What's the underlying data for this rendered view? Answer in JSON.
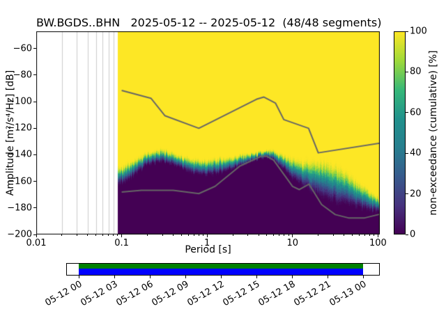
{
  "title": "BW.BGDS..BHN   2025-05-12 -- 2025-05-12  (48/48 segments)",
  "axes": {
    "xlabel": "Period [s]",
    "ylabel": "Amplitude [m²/s⁴/Hz] [dB]"
  },
  "colorbar": {
    "label": "non-exceedance (cumulative) [%]",
    "ticks": [
      0,
      20,
      40,
      60,
      80,
      100
    ],
    "colormap_stops": [
      {
        "t": 0.0,
        "c": "#440154"
      },
      {
        "t": 0.14,
        "c": "#46327e"
      },
      {
        "t": 0.29,
        "c": "#365c8d"
      },
      {
        "t": 0.43,
        "c": "#277f8e"
      },
      {
        "t": 0.57,
        "c": "#21918c"
      },
      {
        "t": 0.71,
        "c": "#35b779"
      },
      {
        "t": 0.86,
        "c": "#a0da39"
      },
      {
        "t": 1.0,
        "c": "#fde725"
      }
    ]
  },
  "chart_data": {
    "type": "heatmap",
    "mode": "non-exceedance (cumulative) [%]",
    "station": "BW.BGDS..BHN",
    "date_range": "2025-05-12 -- 2025-05-12",
    "segments": "48/48",
    "xscale": "log",
    "xlim": [
      0.01,
      105
    ],
    "ylim": [
      -200,
      -47
    ],
    "min_period": 0.09,
    "x_ticks": [
      {
        "v": 0.01,
        "label": "0.01"
      },
      {
        "v": 0.1,
        "label": "0.1"
      },
      {
        "v": 1,
        "label": "1"
      },
      {
        "v": 10,
        "label": "10"
      },
      {
        "v": 100,
        "label": "100"
      }
    ],
    "y_ticks": [
      {
        "v": -60,
        "label": "−60"
      },
      {
        "v": -80,
        "label": "−80"
      },
      {
        "v": -100,
        "label": "−100"
      },
      {
        "v": -120,
        "label": "−120"
      },
      {
        "v": -140,
        "label": "−140"
      },
      {
        "v": -160,
        "label": "−160"
      },
      {
        "v": -180,
        "label": "−180"
      },
      {
        "v": -200,
        "label": "−200"
      }
    ],
    "distribution": {
      "periods": [
        0.09,
        0.12,
        0.15,
        0.2,
        0.3,
        0.4,
        0.5,
        0.7,
        1.0,
        1.5,
        2,
        3,
        4,
        5,
        6,
        8,
        10,
        13,
        16,
        20,
        25,
        30,
        40,
        50,
        65,
        80,
        100,
        105
      ],
      "median_db": [
        -157,
        -153,
        -149,
        -143,
        -141,
        -143,
        -146,
        -149,
        -150,
        -148,
        -146,
        -143,
        -141,
        -140,
        -141,
        -146,
        -151,
        -154,
        -156,
        -158,
        -160,
        -162,
        -165,
        -168,
        -172,
        -175,
        -178,
        -178
      ],
      "halfwidth_db": [
        7,
        7,
        6,
        5,
        5,
        5,
        5,
        6,
        6,
        6,
        5,
        4,
        3,
        3,
        4,
        6,
        8,
        10,
        12,
        14,
        15,
        15,
        14,
        12,
        10,
        8,
        6,
        6
      ]
    },
    "noise_models": {
      "color": "#666666",
      "high": {
        "periods": [
          0.1,
          0.22,
          0.32,
          0.8,
          3.8,
          4.6,
          6.3,
          7.9,
          15.4,
          20,
          354
        ],
        "db": [
          -91.5,
          -97.4,
          -110.5,
          -120.0,
          -98.1,
          -96.5,
          -101.0,
          -113.5,
          -120.0,
          -138.5,
          -126.0
        ]
      },
      "low": {
        "periods": [
          0.1,
          0.17,
          0.4,
          0.8,
          1.24,
          2.4,
          4.3,
          5,
          6,
          10,
          12,
          15.6,
          21.9,
          31.6,
          45,
          70,
          101,
          154,
          328
        ],
        "db": [
          -168.1,
          -166.7,
          -166.7,
          -169.2,
          -163.7,
          -148.6,
          -141.1,
          -141.1,
          -144.0,
          -163.8,
          -166.2,
          -162.1,
          -177.5,
          -185.0,
          -187.5,
          -187.5,
          -185.0,
          -185.0,
          -187.5
        ]
      }
    }
  },
  "availability": {
    "labels": [
      "05-12 00",
      "05-12 03",
      "05-12 06",
      "05-12 09",
      "05-12 12",
      "05-12 15",
      "05-12 18",
      "05-12 21",
      "05-13 00"
    ],
    "used_color": "#008000",
    "data_color": "#0000ff"
  }
}
